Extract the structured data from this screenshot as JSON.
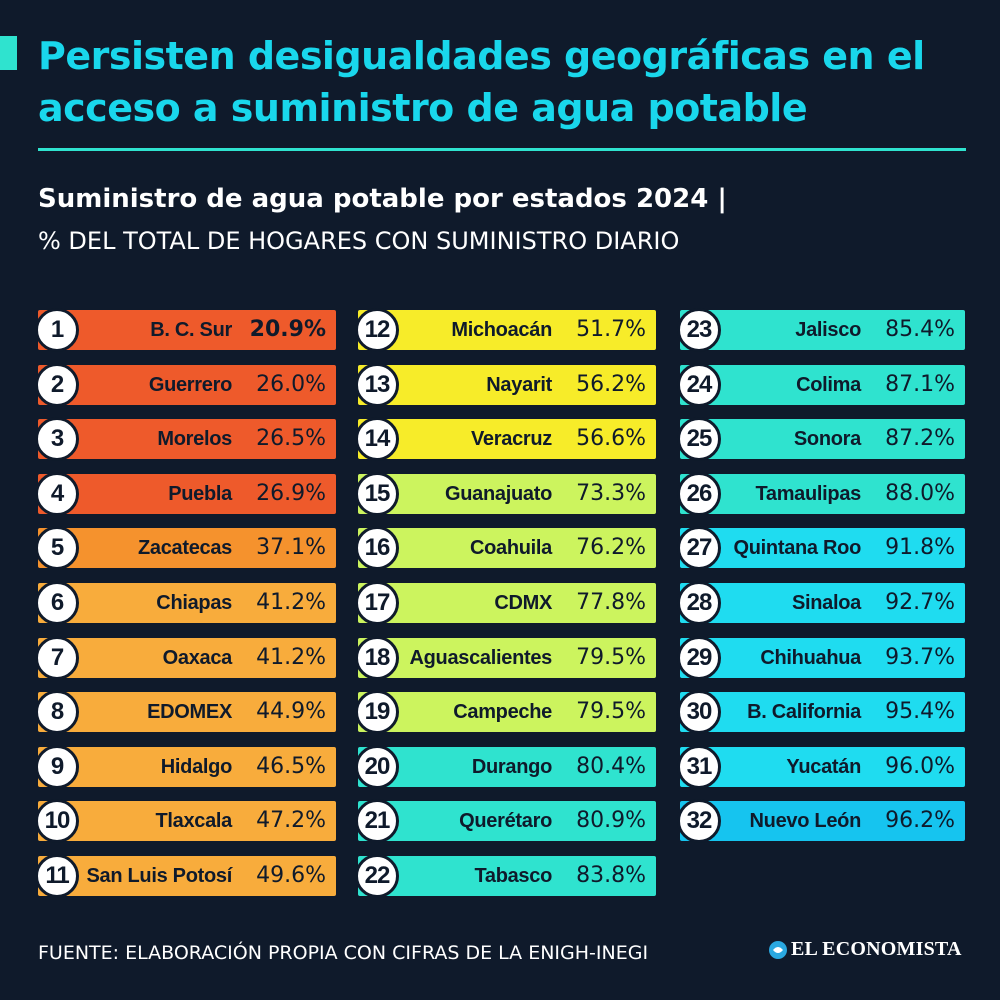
{
  "header": {
    "title": "Persisten desigualdades geográficas en el acceso a suministro de agua potable",
    "subtitle": "Suministro de agua potable por estados 2024 |",
    "subtitle2": "% DEL TOTAL DE HOGARES CON SUMINISTRO DIARIO"
  },
  "colors": {
    "background": "#0f1a2b",
    "accent": "#2fe3cf",
    "title": "#19d7ec"
  },
  "chart_data": {
    "type": "table",
    "unit": "%",
    "rows": [
      {
        "rank": "1",
        "state": "B. C. Sur",
        "label": "20.9%",
        "value": 20.9,
        "color": "#ee5a2b",
        "highlight": true
      },
      {
        "rank": "2",
        "state": "Guerrero",
        "label": "26.0%",
        "value": 26.0,
        "color": "#ee5a2b"
      },
      {
        "rank": "3",
        "state": "Morelos",
        "label": "26.5%",
        "value": 26.5,
        "color": "#ee5a2b"
      },
      {
        "rank": "4",
        "state": "Puebla",
        "label": "26.9%",
        "value": 26.9,
        "color": "#ee5a2b"
      },
      {
        "rank": "5",
        "state": "Zacatecas",
        "label": "37.1%",
        "value": 37.1,
        "color": "#f5922d"
      },
      {
        "rank": "6",
        "state": "Chiapas",
        "label": "41.2%",
        "value": 41.2,
        "color": "#f8ac3c"
      },
      {
        "rank": "7",
        "state": "Oaxaca",
        "label": "41.2%",
        "value": 41.2,
        "color": "#f8ac3c"
      },
      {
        "rank": "8",
        "state": "EDOMEX",
        "label": "44.9%",
        "value": 44.9,
        "color": "#f8ac3c"
      },
      {
        "rank": "9",
        "state": "Hidalgo",
        "label": "46.5%",
        "value": 46.5,
        "color": "#f8ac3c"
      },
      {
        "rank": "10",
        "state": "Tlaxcala",
        "label": "47.2%",
        "value": 47.2,
        "color": "#f8ac3c"
      },
      {
        "rank": "11",
        "state": "San Luis Potosí",
        "label": "49.6%",
        "value": 49.6,
        "color": "#f8ac3c"
      },
      {
        "rank": "12",
        "state": "Michoacán",
        "label": "51.7%",
        "value": 51.7,
        "color": "#f7ec29"
      },
      {
        "rank": "13",
        "state": "Nayarit",
        "label": "56.2%",
        "value": 56.2,
        "color": "#f7ec29"
      },
      {
        "rank": "14",
        "state": "Veracruz",
        "label": "56.6%",
        "value": 56.6,
        "color": "#f7ec29"
      },
      {
        "rank": "15",
        "state": "Guanajuato",
        "label": "73.3%",
        "value": 73.3,
        "color": "#ccf45e"
      },
      {
        "rank": "16",
        "state": "Coahuila",
        "label": "76.2%",
        "value": 76.2,
        "color": "#ccf45e"
      },
      {
        "rank": "17",
        "state": "CDMX",
        "label": "77.8%",
        "value": 77.8,
        "color": "#ccf45e"
      },
      {
        "rank": "18",
        "state": "Aguascalientes",
        "label": "79.5%",
        "value": 79.5,
        "color": "#ccf45e"
      },
      {
        "rank": "19",
        "state": "Campeche",
        "label": "79.5%",
        "value": 79.5,
        "color": "#ccf45e"
      },
      {
        "rank": "20",
        "state": "Durango",
        "label": "80.4%",
        "value": 80.4,
        "color": "#2fe3cf"
      },
      {
        "rank": "21",
        "state": "Querétaro",
        "label": "80.9%",
        "value": 80.9,
        "color": "#2fe3cf"
      },
      {
        "rank": "22",
        "state": "Tabasco",
        "label": "83.8%",
        "value": 83.8,
        "color": "#2fe3cf"
      },
      {
        "rank": "23",
        "state": "Jalisco",
        "label": "85.4%",
        "value": 85.4,
        "color": "#2fe3cf"
      },
      {
        "rank": "24",
        "state": "Colima",
        "label": "87.1%",
        "value": 87.1,
        "color": "#2fe3cf"
      },
      {
        "rank": "25",
        "state": "Sonora",
        "label": "87.2%",
        "value": 87.2,
        "color": "#2fe3cf"
      },
      {
        "rank": "26",
        "state": "Tamaulipas",
        "label": "88.0%",
        "value": 88.0,
        "color": "#2fe3cf"
      },
      {
        "rank": "27",
        "state": "Quintana Roo",
        "label": "91.8%",
        "value": 91.8,
        "color": "#1fdcf0"
      },
      {
        "rank": "28",
        "state": "Sinaloa",
        "label": "92.7%",
        "value": 92.7,
        "color": "#1fdcf0"
      },
      {
        "rank": "29",
        "state": "Chihuahua",
        "label": "93.7%",
        "value": 93.7,
        "color": "#1fdcf0"
      },
      {
        "rank": "30",
        "state": "B. California",
        "label": "95.4%",
        "value": 95.4,
        "color": "#1fdcf0"
      },
      {
        "rank": "31",
        "state": "Yucatán",
        "label": "96.0%",
        "value": 96.0,
        "color": "#1fdcf0"
      },
      {
        "rank": "32",
        "state": "Nuevo León",
        "label": "96.2%",
        "value": 96.2,
        "color": "#16c4ef"
      }
    ]
  },
  "footer": {
    "source": "FUENTE: ELABORACIÓN PROPIA CON CIFRAS DE LA ENIGH-INEGI",
    "logo_text": "EL ECONOMISTA",
    "logo_icon": "el-economista-logo-icon"
  }
}
